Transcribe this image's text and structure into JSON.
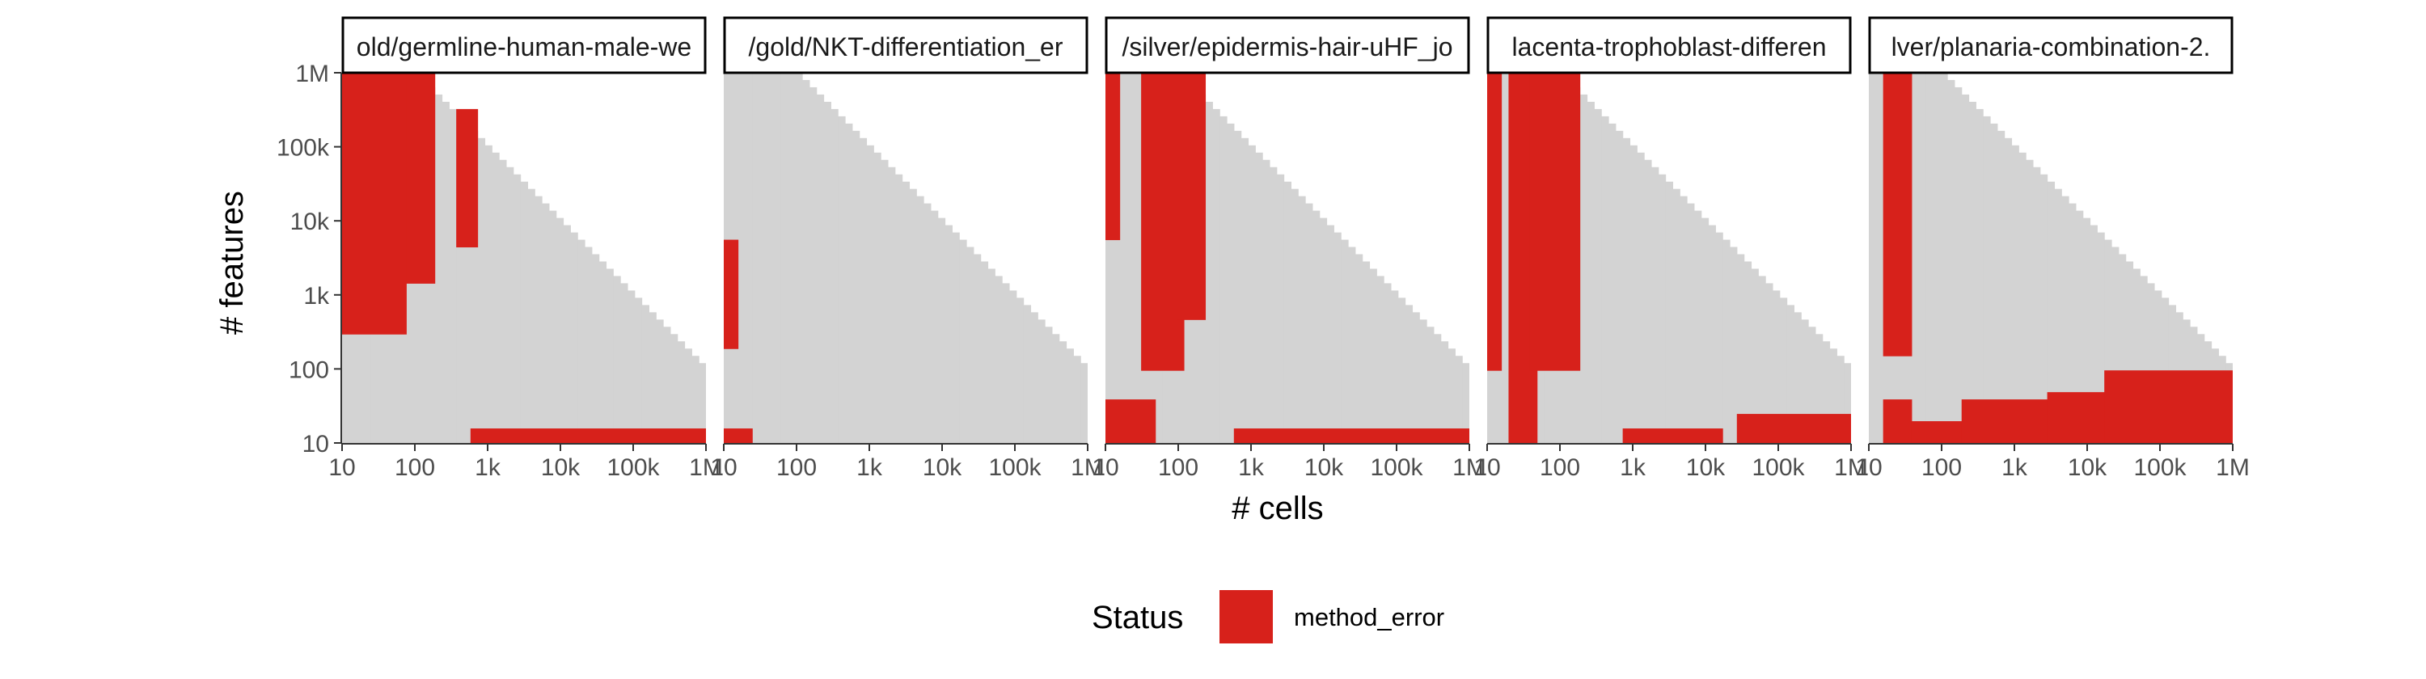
{
  "chart_data": {
    "type": "heatmap",
    "xlabel": "# cells",
    "ylabel": "# features",
    "x_scale": "log10",
    "y_scale": "log10",
    "xlim": [
      10,
      1000000
    ],
    "ylim": [
      10,
      1000000
    ],
    "x_ticks": [
      {
        "value": 10,
        "label": "10"
      },
      {
        "value": 100,
        "label": "100"
      },
      {
        "value": 1000,
        "label": "1k"
      },
      {
        "value": 10000,
        "label": "10k"
      },
      {
        "value": 100000,
        "label": "100k"
      },
      {
        "value": 1000000,
        "label": "1M"
      }
    ],
    "y_ticks": [
      {
        "value": 10,
        "label": "10"
      },
      {
        "value": 100,
        "label": "100"
      },
      {
        "value": 1000,
        "label": "1k"
      },
      {
        "value": 10000,
        "label": "10k"
      },
      {
        "value": 100000,
        "label": "100k"
      },
      {
        "value": 1000000,
        "label": "1M"
      }
    ],
    "grid": false,
    "legend": {
      "title": "Status",
      "position": "bottom",
      "entries": [
        {
          "label": "method_error",
          "color": "#D7211B"
        }
      ]
    },
    "colors": {
      "method_error": "#D7211B",
      "ok": "#D3D3D3",
      "frame": "#000000"
    },
    "cell_grid": {
      "log10_min": 1,
      "log10_max": 6,
      "step_log10": 0.1,
      "columns_start_at_cells": 10,
      "rows_start_at_features": 10,
      "feasible_region": "cells x features <= 1e8, features <= 1e6",
      "note": "values mark cells with status method_error; all other feasible cells are shown in light grey"
    },
    "panels": [
      {
        "title": "old/germline-human-male-we",
        "method_error_runs": [
          {
            "cells": [
              "10",
              "~60"
            ],
            "features": [
              "~300",
              "1M"
            ]
          },
          {
            "cells": [
              "~80",
              "~150"
            ],
            "features": [
              "~1.5k",
              "1M"
            ]
          },
          {
            "cells": [
              "~400",
              "~600"
            ],
            "features": [
              "~5k",
              "~300k"
            ]
          },
          {
            "cells": [
              "~600",
              "1M"
            ],
            "features": [
              "10",
              "~12"
            ]
          }
        ]
      },
      {
        "title": "/gold/NKT-differentiation_er",
        "method_error_runs": [
          {
            "cells": [
              "10",
              "~12"
            ],
            "features": [
              "~200",
              "~5k"
            ]
          },
          {
            "cells": [
              "10",
              "~20"
            ],
            "features": [
              "10",
              "~12"
            ]
          }
        ]
      },
      {
        "title": "/silver/epidermis-hair-uHF_jo",
        "method_error_runs": [
          {
            "cells": [
              "10",
              "~12"
            ],
            "features": [
              "~6k",
              "1M"
            ]
          },
          {
            "cells": [
              "10",
              "~40"
            ],
            "features": [
              "10",
              "~30"
            ]
          },
          {
            "cells": [
              "~30",
              "~100"
            ],
            "features": [
              "~100",
              "1M"
            ]
          },
          {
            "cells": [
              "~100",
              "~200"
            ],
            "features": [
              "~500",
              "1M"
            ]
          },
          {
            "cells": [
              "~600",
              "1M"
            ],
            "features": [
              "10",
              "~12"
            ]
          }
        ]
      },
      {
        "title": "lacenta-trophoblast-differen",
        "method_error_runs": [
          {
            "cells": [
              "10",
              "~12"
            ],
            "features": [
              "~100",
              "1M"
            ]
          },
          {
            "cells": [
              "~20",
              "~40"
            ],
            "features": [
              "10",
              "1M"
            ]
          },
          {
            "cells": [
              "~40",
              "~150"
            ],
            "features": [
              "~100",
              "1M"
            ]
          },
          {
            "cells": [
              "~800",
              "~15k"
            ],
            "features": [
              "10",
              "~12"
            ]
          },
          {
            "cells": [
              "~30k",
              "1M"
            ],
            "features": [
              "10",
              "~20"
            ]
          }
        ]
      },
      {
        "title": "lver/planaria-combination-2.",
        "method_error_runs": [
          {
            "cells": [
              "~15",
              "~30"
            ],
            "features": [
              "~150",
              "1M"
            ]
          },
          {
            "cells": [
              "~15",
              "~30"
            ],
            "features": [
              "10",
              "~30"
            ]
          },
          {
            "cells": [
              "~40",
              "~200"
            ],
            "features": [
              "10",
              "~15"
            ]
          },
          {
            "cells": [
              "~200",
              "~3k"
            ],
            "features": [
              "10",
              "~30"
            ]
          },
          {
            "cells": [
              "~3k",
              "~20k"
            ],
            "features": [
              "10",
              "~40"
            ]
          },
          {
            "cells": [
              "~20k",
              "1M"
            ],
            "features": [
              "10",
              "~80"
            ]
          }
        ]
      }
    ]
  }
}
